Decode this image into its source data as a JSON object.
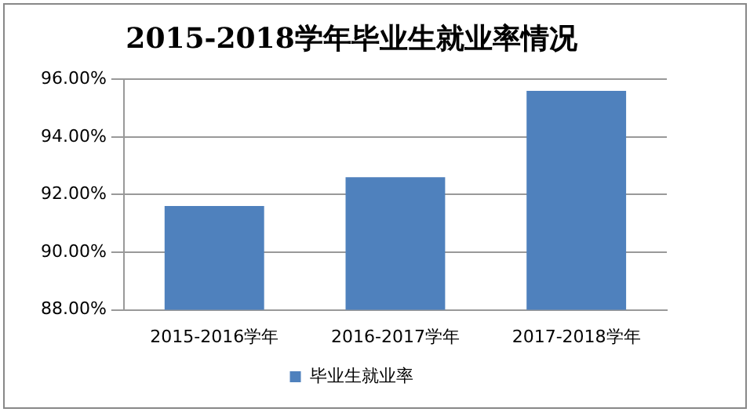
{
  "chart_data": {
    "type": "bar",
    "title": "2015-2018学年毕业生就业率情况",
    "categories": [
      "2015-2016学年",
      "2016-2017学年",
      "2017-2018学年"
    ],
    "series": [
      {
        "name": "毕业生就业率",
        "color": "#4f81bd",
        "values": [
          91.6,
          92.6,
          95.6
        ]
      }
    ],
    "ylim": [
      88,
      96
    ],
    "yticks": [
      {
        "value": 88,
        "label": "88.00%"
      },
      {
        "value": 90,
        "label": "90.00%"
      },
      {
        "value": 92,
        "label": "92.00%"
      },
      {
        "value": 94,
        "label": "94.00%"
      },
      {
        "value": 96,
        "label": "96.00%"
      }
    ],
    "grid": "y",
    "legend": "bottom"
  }
}
